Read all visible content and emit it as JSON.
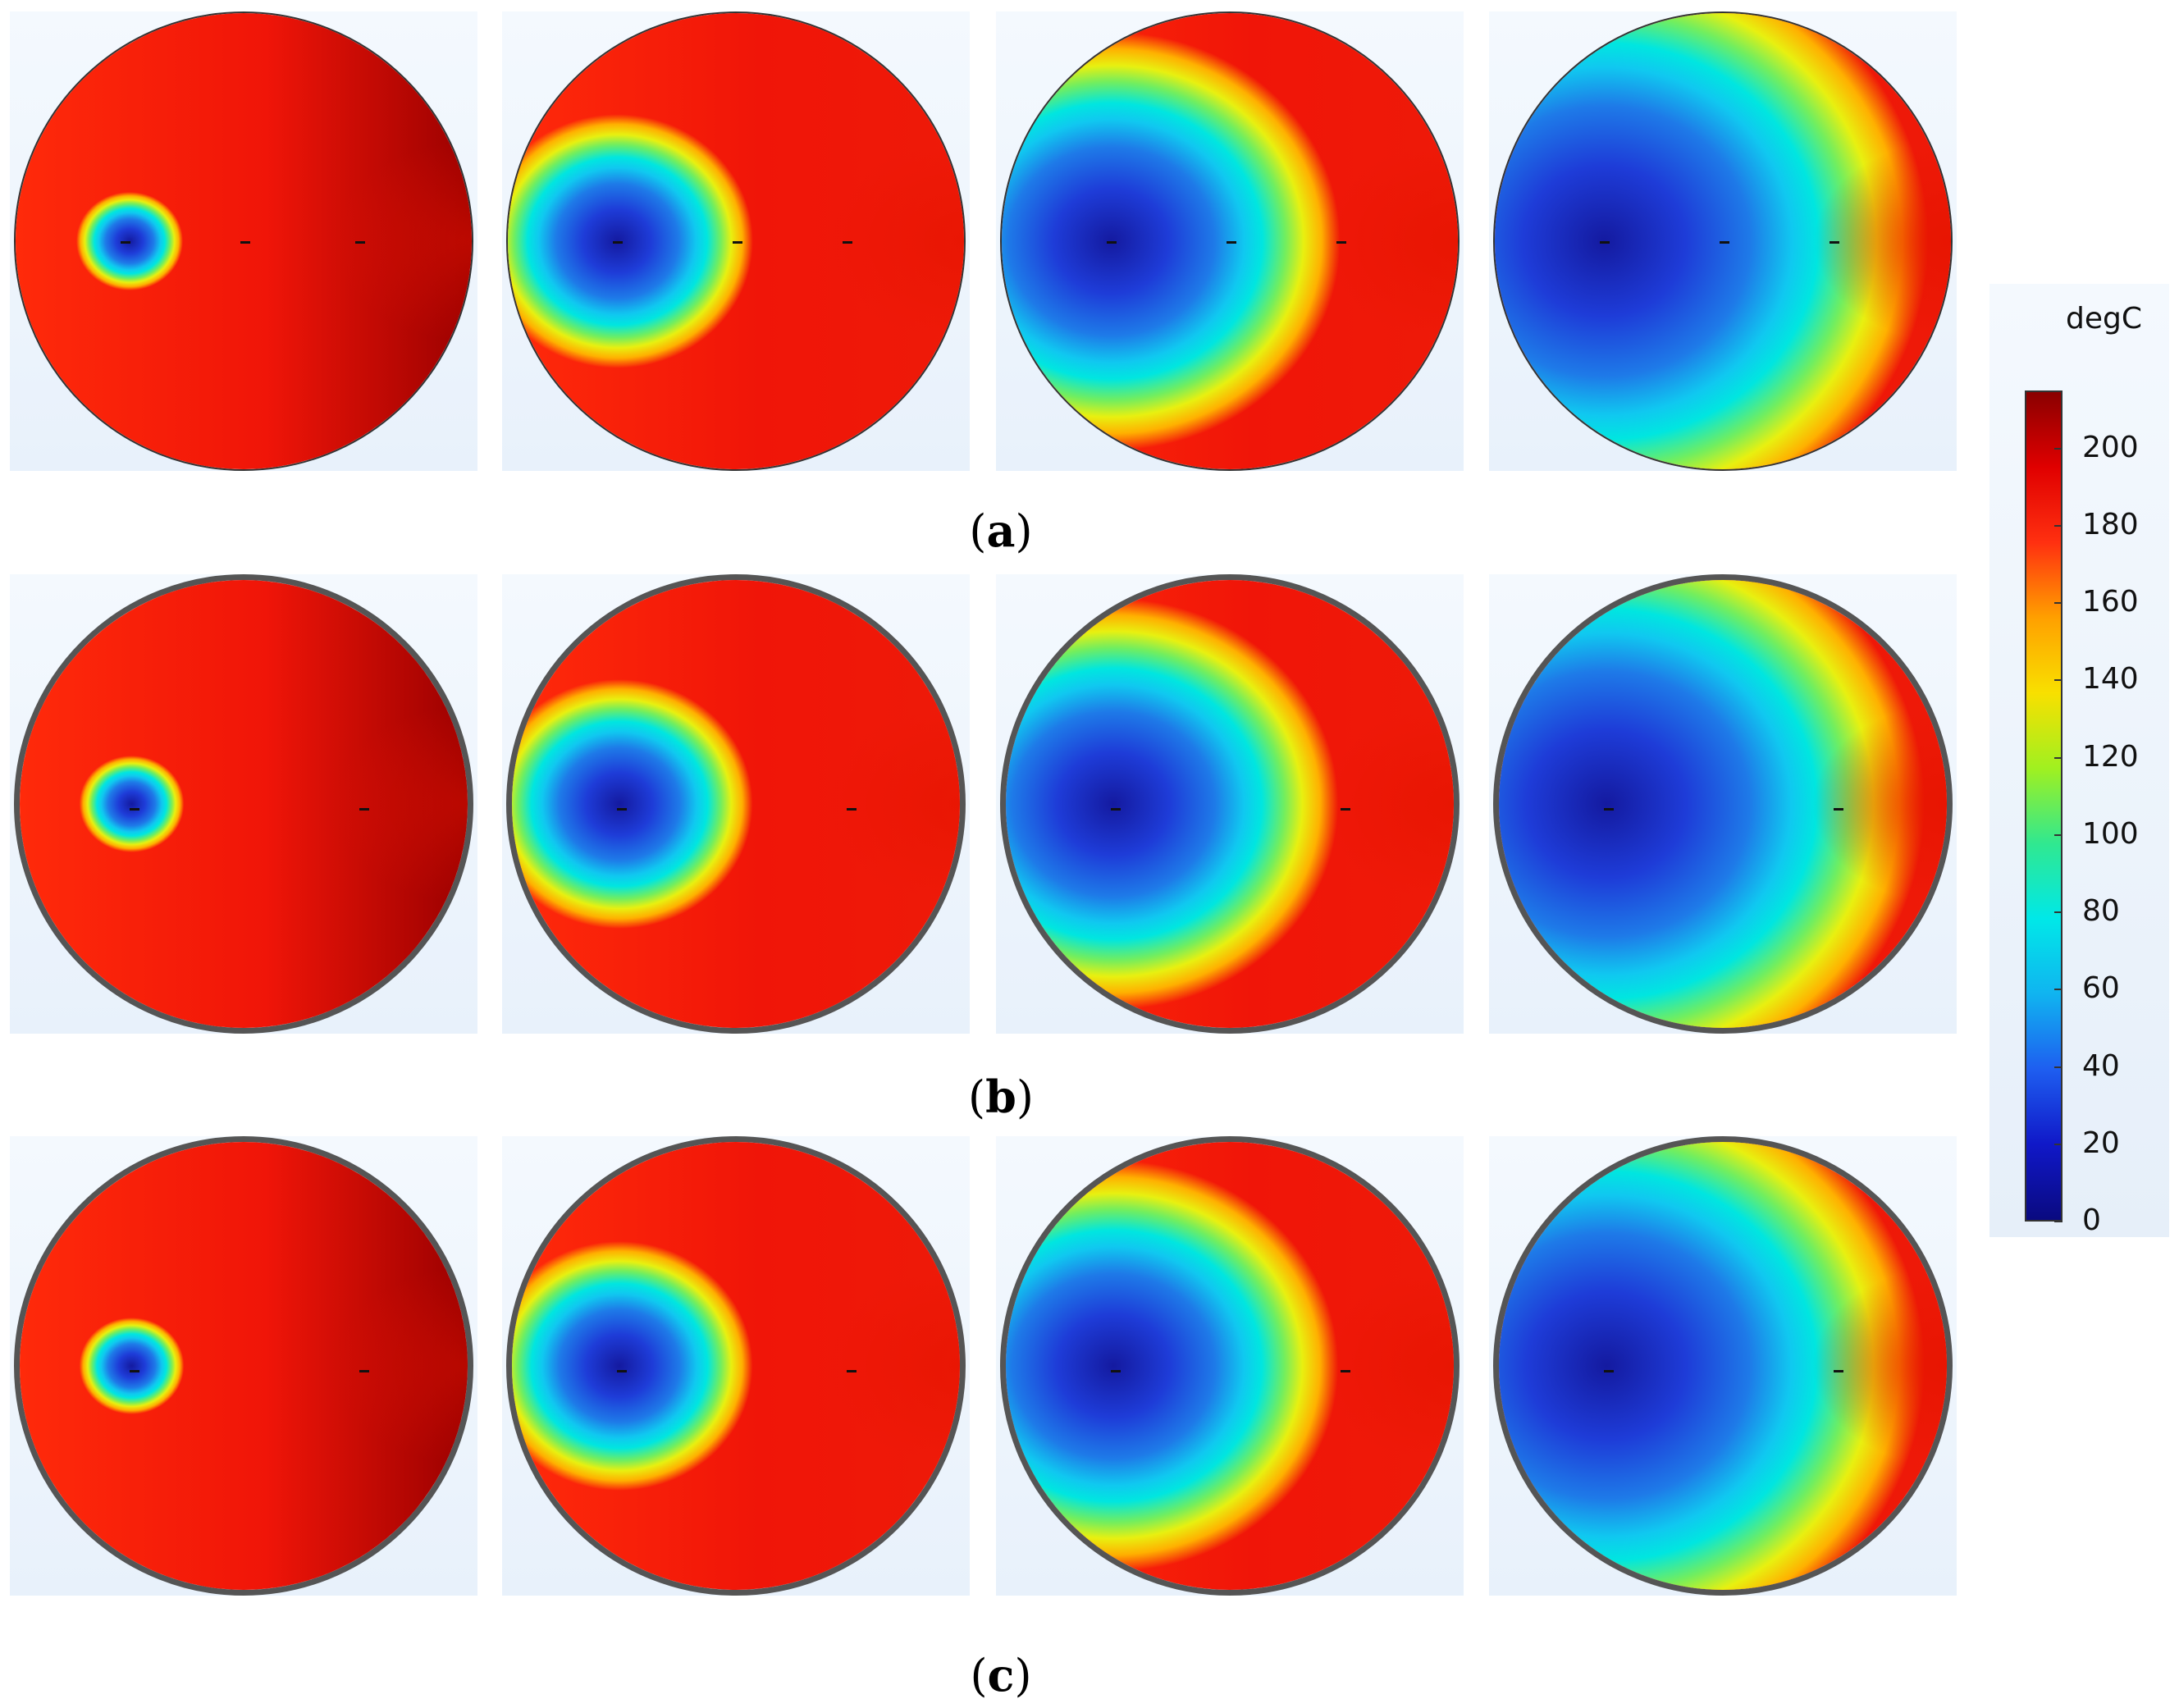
{
  "rows": [
    {
      "label": "a",
      "panels": [
        {
          "cold_x": 0.25,
          "cold_r": 0.3,
          "hot_bias": 0.15,
          "rim_dark": false,
          "markers": [
            0.24,
            0.5,
            0.75
          ]
        },
        {
          "cold_x": 0.24,
          "cold_r": 0.48,
          "hot_bias": 0.45,
          "rim_dark": false,
          "markers": [
            0.24,
            0.5,
            0.74
          ]
        },
        {
          "cold_x": 0.24,
          "cold_r": 0.62,
          "hot_bias": 0.62,
          "rim_dark": false,
          "markers": [
            0.24,
            0.5,
            0.74
          ]
        },
        {
          "cold_x": 0.24,
          "cold_r": 0.74,
          "hot_bias": 0.8,
          "rim_dark": false,
          "markers": [
            0.24,
            0.5,
            0.74
          ]
        }
      ]
    },
    {
      "label": "b",
      "panels": [
        {
          "cold_x": 0.25,
          "cold_r": 0.3,
          "hot_bias": 0.1,
          "rim_dark": true,
          "markers": [
            0.25,
            0.75
          ]
        },
        {
          "cold_x": 0.24,
          "cold_r": 0.48,
          "hot_bias": 0.45,
          "rim_dark": true,
          "markers": [
            0.24,
            0.74
          ]
        },
        {
          "cold_x": 0.24,
          "cold_r": 0.62,
          "hot_bias": 0.62,
          "rim_dark": true,
          "markers": [
            0.24,
            0.74
          ]
        },
        {
          "cold_x": 0.24,
          "cold_r": 0.74,
          "hot_bias": 0.8,
          "rim_dark": true,
          "markers": [
            0.24,
            0.74
          ]
        }
      ]
    },
    {
      "label": "c",
      "panels": [
        {
          "cold_x": 0.25,
          "cold_r": 0.3,
          "hot_bias": 0.05,
          "rim_dark": true,
          "markers": [
            0.25,
            0.75
          ]
        },
        {
          "cold_x": 0.24,
          "cold_r": 0.48,
          "hot_bias": 0.45,
          "rim_dark": true,
          "markers": [
            0.24,
            0.74
          ]
        },
        {
          "cold_x": 0.24,
          "cold_r": 0.62,
          "hot_bias": 0.62,
          "rim_dark": true,
          "markers": [
            0.24,
            0.74
          ]
        },
        {
          "cold_x": 0.24,
          "cold_r": 0.74,
          "hot_bias": 0.8,
          "rim_dark": true,
          "markers": [
            0.24,
            0.74
          ]
        }
      ]
    }
  ],
  "colorbar": {
    "unit": "degC",
    "min": 0,
    "max": 215,
    "ticks": [
      "200",
      "180",
      "160",
      "140",
      "120",
      "100",
      "80",
      "60",
      "40",
      "20",
      "0"
    ],
    "tick_values": [
      200,
      180,
      160,
      140,
      120,
      100,
      80,
      60,
      40,
      20,
      0
    ]
  }
}
